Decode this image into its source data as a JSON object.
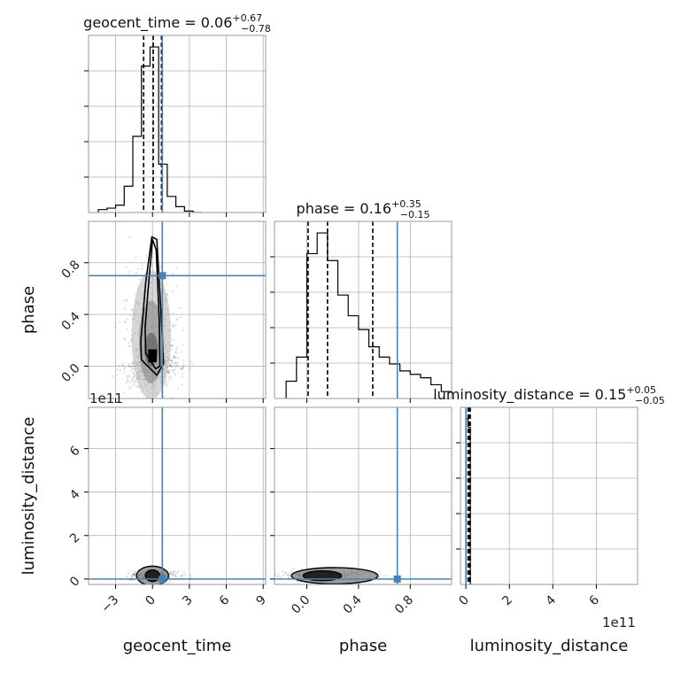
{
  "chart_data": {
    "type": "corner",
    "parameters": [
      "geocent_time",
      "phase",
      "luminosity_distance"
    ],
    "axis_labels": {
      "geocent_time": "geocent_time",
      "phase": "phase",
      "luminosity_distance": "luminosity_distance"
    },
    "titles": [
      {
        "param": "geocent_time",
        "text": "geocent_time = 0.06",
        "upper": "+0.67",
        "lower": "−0.78"
      },
      {
        "param": "phase",
        "text": "phase = 0.16",
        "upper": "+0.35",
        "lower": "−0.15"
      },
      {
        "param": "luminosity_distance",
        "text": "luminosity_distance = 0.15",
        "upper": "+0.05",
        "lower": "−0.05"
      }
    ],
    "ranges": {
      "geocent_time": [
        -5.2,
        9.2
      ],
      "phase": [
        -0.25,
        1.12
      ],
      "luminosity_distance": [
        -0.25,
        7.9
      ]
    },
    "ticks": {
      "geocent_time": {
        "values": [
          -3,
          0,
          3,
          6,
          9
        ],
        "labels": [
          "−3",
          "0",
          "3",
          "6",
          "9"
        ]
      },
      "phase": {
        "values": [
          0.0,
          0.4,
          0.8
        ],
        "labels": [
          "0.0",
          "0.4",
          "0.8"
        ]
      },
      "luminosity_distance": {
        "values": [
          0,
          2,
          4,
          6
        ],
        "labels": [
          "0",
          "2",
          "4",
          "6"
        ]
      }
    },
    "offset_text": "1e11",
    "truths": {
      "geocent_time": 0.8,
      "phase": 0.7,
      "luminosity_distance": 0.0
    },
    "quantiles": {
      "geocent_time": [
        -0.72,
        0.06,
        0.73
      ],
      "phase": [
        0.01,
        0.16,
        0.51
      ],
      "luminosity_distance": [
        0.1,
        0.15,
        0.2
      ]
    },
    "histograms": {
      "geocent_time": {
        "edges": [
          -4.4,
          -3.7,
          -3.0,
          -2.3,
          -1.6,
          -0.9,
          -0.2,
          0.5,
          1.2,
          1.9,
          2.6,
          3.3,
          4.0
        ],
        "counts": [
          2,
          3,
          5,
          18,
          52,
          100,
          113,
          33,
          11,
          4,
          1,
          0
        ]
      },
      "phase": {
        "edges": [
          -0.16,
          -0.08,
          0.0,
          0.08,
          0.16,
          0.24,
          0.32,
          0.4,
          0.48,
          0.56,
          0.64,
          0.72,
          0.8,
          0.88,
          0.96,
          1.04,
          1.12
        ],
        "counts": [
          5,
          12,
          42,
          48,
          40,
          30,
          24,
          20,
          15,
          12,
          10,
          8,
          7,
          6,
          4,
          2
        ]
      },
      "luminosity_distance": {
        "edges": [
          0.0,
          0.1,
          0.2,
          0.3
        ],
        "counts": [
          100,
          95,
          0
        ]
      }
    },
    "contours_2d": {
      "phase_vs_geocent_time": {
        "center": [
          -0.1,
          0.09
        ],
        "levels": [
          {
            "x": [
              -0.55,
              0.25,
              0.6,
              0.55,
              0.3,
              0.0,
              -0.35,
              -0.6
            ],
            "y": [
              0.1,
              -0.02,
              0.0,
              0.35,
              0.9,
              0.98,
              0.6,
              0.3
            ]
          },
          {
            "x": [
              -0.9,
              0.35,
              0.9,
              0.7,
              0.35,
              -0.05,
              -0.55,
              -0.95
            ],
            "y": [
              0.05,
              -0.07,
              0.02,
              0.4,
              0.98,
              1.0,
              0.65,
              0.2
            ]
          }
        ]
      },
      "luminosity_distance_vs_geocent_time": {
        "center": [
          0.0,
          0.15
        ],
        "x_half_width": 1.3,
        "y_half_height": 0.2
      },
      "luminosity_distance_vs_phase": {
        "center": [
          0.12,
          0.15
        ],
        "x_extent": [
          -0.12,
          0.55
        ],
        "y_half_height": 0.17
      }
    }
  }
}
